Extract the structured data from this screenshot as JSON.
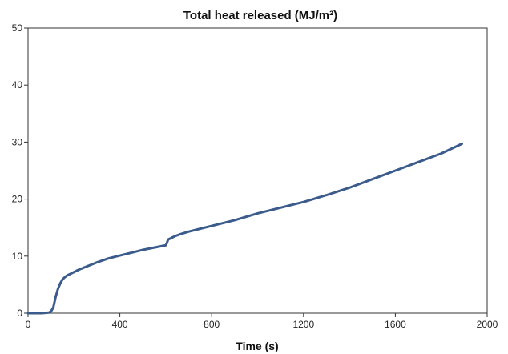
{
  "chart_data": {
    "type": "line",
    "title": "Total heat released (MJ/m²)",
    "xlabel": "Time (s)",
    "ylabel": "",
    "xlim": [
      0,
      2000
    ],
    "ylim": [
      0,
      50
    ],
    "xticks": [
      0,
      400,
      800,
      1200,
      1600,
      2000
    ],
    "xtick_labels": [
      "0",
      "400",
      "800",
      "1200",
      "1600",
      "2000"
    ],
    "yticks": [
      0,
      10,
      20,
      30,
      40,
      50
    ],
    "ytick_labels": [
      "0",
      "10",
      "20",
      "30",
      "40",
      "50"
    ],
    "grid": false,
    "legend": "none",
    "series": [
      {
        "color": "#3b5b8c",
        "x": [
          0,
          60,
          90,
          100,
          110,
          120,
          130,
          140,
          150,
          160,
          170,
          180,
          200,
          220,
          250,
          300,
          350,
          400,
          450,
          500,
          550,
          600,
          605,
          610,
          620,
          640,
          660,
          700,
          750,
          800,
          900,
          1000,
          1100,
          1200,
          1300,
          1400,
          1500,
          1600,
          1700,
          1800,
          1890
        ],
        "y": [
          0,
          0,
          0.1,
          0.3,
          1.0,
          2.8,
          4.2,
          5.2,
          5.9,
          6.3,
          6.6,
          6.8,
          7.2,
          7.6,
          8.1,
          8.9,
          9.6,
          10.1,
          10.6,
          11.1,
          11.5,
          11.9,
          12.3,
          12.9,
          13.1,
          13.5,
          13.8,
          14.3,
          14.8,
          15.3,
          16.3,
          17.5,
          18.5,
          19.5,
          20.7,
          22.0,
          23.5,
          25.0,
          26.5,
          28.0,
          29.7
        ]
      }
    ]
  }
}
